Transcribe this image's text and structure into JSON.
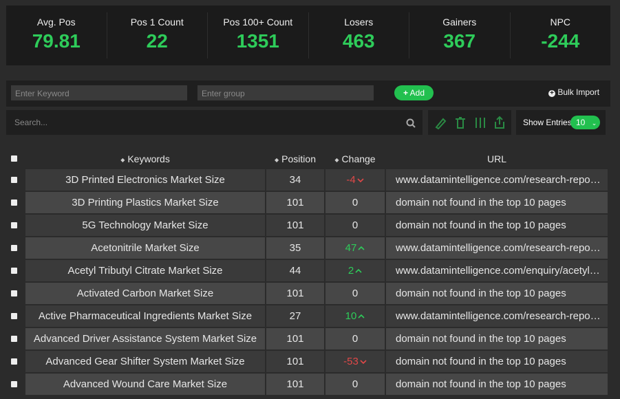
{
  "stats": [
    {
      "label": "Avg. Pos",
      "value": "79.81"
    },
    {
      "label": "Pos 1 Count",
      "value": "22"
    },
    {
      "label": "Pos 100+ Count",
      "value": "1351"
    },
    {
      "label": "Losers",
      "value": "463"
    },
    {
      "label": "Gainers",
      "value": "367"
    },
    {
      "label": "NPC",
      "value": "-244"
    }
  ],
  "form": {
    "keyword_placeholder": "Enter Keyword",
    "group_placeholder": "Enter group",
    "add_button": "Add",
    "bulk_import": "Bulk Import",
    "search_placeholder": "Search...",
    "show_entries": "Show Entries",
    "entries_count": "10"
  },
  "table": {
    "headers": [
      "Keywords",
      "Position",
      "Change",
      "URL"
    ],
    "rows": [
      [
        "3D Printed Electronics Market Size",
        34,
        -4,
        "www.datamintelligence.com/research-repo…"
      ],
      [
        "3D Printing Plastics Market Size",
        101,
        0,
        "domain not found in the top 10 pages"
      ],
      [
        "5G Technology Market Size",
        101,
        0,
        "domain not found in the top 10 pages"
      ],
      [
        "Acetonitrile Market Size",
        35,
        47,
        "www.datamintelligence.com/research-repo…"
      ],
      [
        "Acetyl Tributyl Citrate Market Size",
        44,
        2,
        "www.datamintelligence.com/enquiry/acetyl…"
      ],
      [
        "Activated Carbon Market Size",
        101,
        0,
        "domain not found in the top 10 pages"
      ],
      [
        "Active Pharmaceutical Ingredients Market Size",
        27,
        10,
        "www.datamintelligence.com/research-repo…"
      ],
      [
        "Advanced Driver Assistance System Market Size",
        101,
        0,
        "domain not found in the top 10 pages"
      ],
      [
        "Advanced Gear Shifter System Market Size",
        101,
        -53,
        "domain not found in the top 10 pages"
      ],
      [
        "Advanced Wound Care Market Size",
        101,
        0,
        "domain not found in the top 10 pages"
      ]
    ]
  }
}
